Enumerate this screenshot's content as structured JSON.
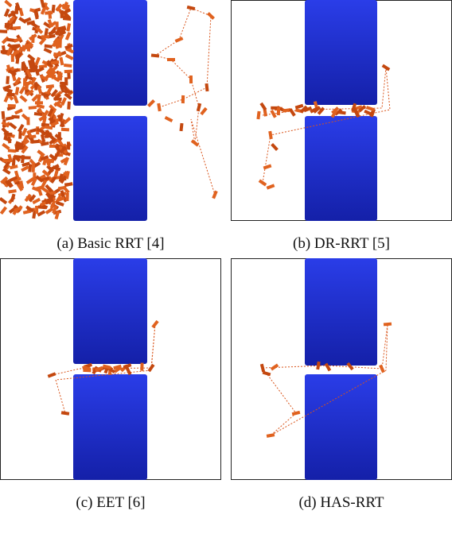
{
  "subfigures": [
    {
      "caption": "(a) Basic RRT [4]"
    },
    {
      "caption": "(b) DR-RRT [5]"
    },
    {
      "caption": "(c) EET [6]"
    },
    {
      "caption": "(d) HAS-RRT"
    }
  ]
}
